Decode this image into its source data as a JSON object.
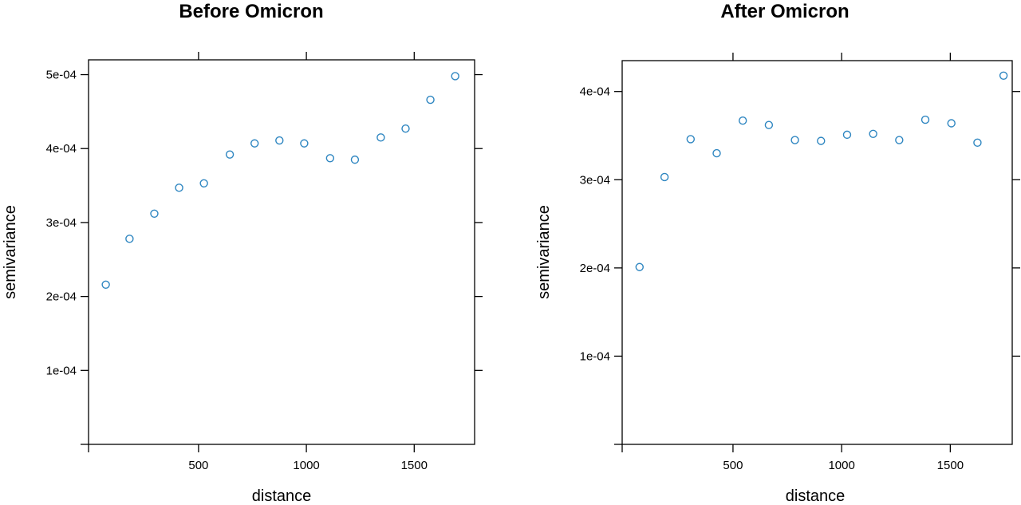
{
  "chart_data": [
    {
      "type": "scatter",
      "title": "Before Omicron",
      "xlabel": "distance",
      "ylabel": "semivariance",
      "xlim": [
        -10,
        1780
      ],
      "ylim": [
        0,
        0.00052
      ],
      "x_ticks": [
        500,
        1000,
        1500
      ],
      "x_tick_labels": [
        "500",
        "1000",
        "1500"
      ],
      "y_ticks": [
        0.0001,
        0.0002,
        0.0003,
        0.0004,
        0.0005
      ],
      "y_tick_labels": [
        "1e-04",
        "2e-04",
        "3e-04",
        "4e-04",
        "5e-04"
      ],
      "point_color": "#2e86c1",
      "points": [
        {
          "x": 70,
          "y": 0.000216
        },
        {
          "x": 180,
          "y": 0.000278
        },
        {
          "x": 295,
          "y": 0.000312
        },
        {
          "x": 410,
          "y": 0.000347
        },
        {
          "x": 525,
          "y": 0.000353
        },
        {
          "x": 645,
          "y": 0.000392
        },
        {
          "x": 760,
          "y": 0.000407
        },
        {
          "x": 875,
          "y": 0.000411
        },
        {
          "x": 990,
          "y": 0.000407
        },
        {
          "x": 1110,
          "y": 0.000387
        },
        {
          "x": 1225,
          "y": 0.000385
        },
        {
          "x": 1345,
          "y": 0.000415
        },
        {
          "x": 1460,
          "y": 0.000427
        },
        {
          "x": 1575,
          "y": 0.000466
        },
        {
          "x": 1690,
          "y": 0.000498
        }
      ]
    },
    {
      "type": "scatter",
      "title": "After Omicron",
      "xlabel": "distance",
      "ylabel": "semivariance",
      "xlim": [
        -10,
        1785
      ],
      "ylim": [
        0,
        0.000435
      ],
      "x_ticks": [
        500,
        1000,
        1500
      ],
      "x_tick_labels": [
        "500",
        "1000",
        "1500"
      ],
      "y_ticks": [
        0.0001,
        0.0002,
        0.0003,
        0.0004
      ],
      "y_tick_labels": [
        "1e-04",
        "2e-04",
        "3e-04",
        "4e-04"
      ],
      "point_color": "#2e86c1",
      "points": [
        {
          "x": 70,
          "y": 0.000201
        },
        {
          "x": 185,
          "y": 0.000303
        },
        {
          "x": 305,
          "y": 0.000346
        },
        {
          "x": 425,
          "y": 0.00033
        },
        {
          "x": 545,
          "y": 0.000367
        },
        {
          "x": 665,
          "y": 0.000362
        },
        {
          "x": 785,
          "y": 0.000345
        },
        {
          "x": 905,
          "y": 0.000344
        },
        {
          "x": 1025,
          "y": 0.000351
        },
        {
          "x": 1145,
          "y": 0.000352
        },
        {
          "x": 1265,
          "y": 0.000345
        },
        {
          "x": 1385,
          "y": 0.000368
        },
        {
          "x": 1505,
          "y": 0.000364
        },
        {
          "x": 1625,
          "y": 0.000342
        },
        {
          "x": 1745,
          "y": 0.000418
        }
      ]
    }
  ]
}
